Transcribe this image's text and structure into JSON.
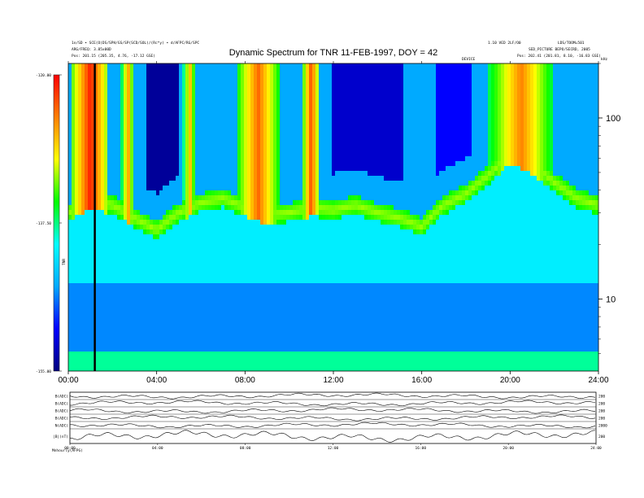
{
  "header": {
    "left_line1": "1n/SD • SCE(O)DS/SPH/GS/SP(SCD/SOL)/(Rc*y) • d/AFPC/RG/SPC",
    "left_line2": "ARG/FREQ: 3.85x00D",
    "left_line3": "Pos:  201.15 (205.35, 4.76, -17.12 GSE)",
    "right_line1": "1.10 VED 2LF/O0",
    "right_line1b": "LDS/TOOM=501",
    "right_line2": "SED_PICTURE BEPO/SECRD, 2005",
    "right_line3": "Pos:  202.41 (201.81, 8.10, -16.83 GSE)",
    "device_label": "DEVICE",
    "corner_label": "kHz"
  },
  "chart_data": {
    "type": "heatmap",
    "title": "Dynamic Spectrum for TNR 11-FEB-1997, DOY = 42",
    "x_ticks": [
      "00:00",
      "04:00",
      "08:00",
      "12:00",
      "16:00",
      "20:00",
      "24:00"
    ],
    "x_range_hours": [
      0,
      24
    ],
    "y_ticks": [
      "100",
      "10"
    ],
    "y_scale": "log",
    "y_range_khz": [
      4,
      200
    ],
    "colorbar": {
      "ticks": [
        "-120.00",
        "-137.50",
        "-155.00"
      ],
      "range": [
        -155,
        -120
      ],
      "label": "TNR",
      "colors": [
        "#000080",
        "#0000ff",
        "#00aaff",
        "#00ffff",
        "#00ff00",
        "#ffff00",
        "#ff8000",
        "#ff0000"
      ]
    },
    "marker_line_hour": 1.2,
    "bands": [
      {
        "name": "background",
        "freq_khz": [
          4,
          200
        ],
        "level": -141
      },
      {
        "name": "low_band",
        "freq_khz": [
          4,
          12
        ],
        "level": -146
      },
      {
        "name": "plasma_line",
        "hours": [
          0,
          1,
          2,
          3,
          4,
          5,
          6,
          7,
          8,
          9,
          10,
          11,
          12,
          13,
          14,
          15,
          16,
          17,
          18,
          19,
          20,
          21,
          22,
          23,
          24
        ],
        "freq_khz": [
          30,
          35,
          33,
          28,
          24,
          30,
          34,
          36,
          32,
          29,
          30,
          32,
          31,
          33,
          30,
          28,
          25,
          33,
          38,
          48,
          62,
          55,
          44,
          36,
          33
        ],
        "level": -132
      }
    ],
    "bursts": [
      {
        "hours": [
          0.2,
          1.8
        ],
        "level": -121
      },
      {
        "hours": [
          2.4,
          3.0
        ],
        "level": -126
      },
      {
        "hours": [
          5.2,
          5.8
        ],
        "level": -127
      },
      {
        "hours": [
          7.6,
          9.6
        ],
        "level": -124
      },
      {
        "hours": [
          10.6,
          11.4
        ],
        "level": -123
      },
      {
        "hours": [
          19.0,
          22.0
        ],
        "level": -125
      }
    ],
    "dark_regions": [
      {
        "hours": [
          3.6,
          5.0
        ],
        "level": -154
      },
      {
        "hours": [
          12.0,
          15.2
        ],
        "level": -152
      },
      {
        "hours": [
          16.6,
          18.2
        ],
        "level": -150
      }
    ]
  },
  "panels": {
    "labels": [
      "B(ADC)",
      "B(ADC)",
      "B(ADC)",
      "B(ADC)",
      "N(ADC)",
      "|B|(nT)"
    ],
    "right_labels": [
      "200",
      "200",
      "200",
      "200",
      "2000",
      "200"
    ],
    "time_ticks": [
      "00:00",
      "04:00",
      "08:00",
      "12:00",
      "16:00",
      "20:00",
      "24:00"
    ],
    "footer_label": "Mnhourly(AFPG)"
  }
}
